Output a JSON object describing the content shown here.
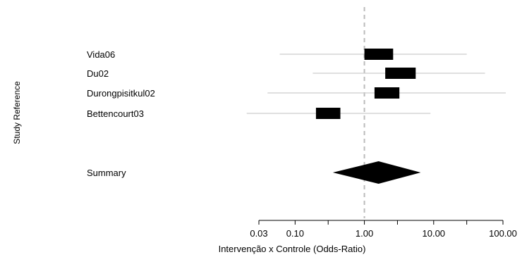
{
  "chart_data": {
    "type": "forest",
    "xlabel": "Intervenção x Controle (Odds-Ratio)",
    "ylabel": "Study Reference",
    "x_scale": "log",
    "xlim": [
      0.03,
      100
    ],
    "ticks": [
      0.03,
      0.1,
      0.3,
      1,
      3,
      10,
      30,
      100
    ],
    "tick_labels": [
      "0.03",
      "0.10",
      "",
      "1.00",
      "",
      "10.00",
      "",
      "100.00"
    ],
    "reference_line": 1,
    "studies": [
      {
        "name": "Vida06",
        "estimate": 1.6,
        "ci_low": 0.06,
        "ci_high": 30,
        "box_low": 1.0,
        "box_high": 2.6
      },
      {
        "name": "Du02",
        "estimate": 3.2,
        "ci_low": 0.18,
        "ci_high": 55,
        "box_low": 2.0,
        "box_high": 5.5
      },
      {
        "name": "Durongpisitkul02",
        "estimate": 2.2,
        "ci_low": 0.04,
        "ci_high": 110,
        "box_low": 1.4,
        "box_high": 3.2
      },
      {
        "name": "Bettencourt03",
        "estimate": 0.3,
        "ci_low": 0.02,
        "ci_high": 9,
        "box_low": 0.2,
        "box_high": 0.45
      }
    ],
    "summary": {
      "name": "Summary",
      "estimate": 1.6,
      "ci_low": 0.35,
      "ci_high": 6.5
    }
  }
}
